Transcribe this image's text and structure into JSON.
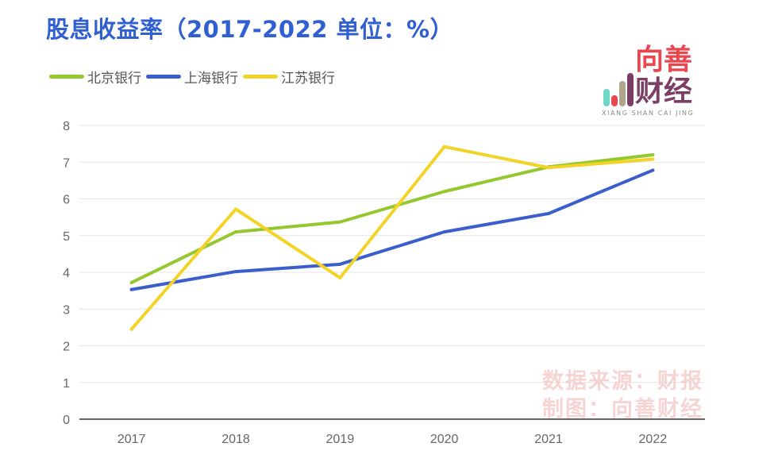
{
  "title": "股息收益率（2017-2022 单位：%）",
  "logo": {
    "top_text": "向善",
    "bottom_text": "财经",
    "sub_text": "XIANG SHAN CAI JING",
    "bar_colors": [
      "#6fd6c8",
      "#e9474f",
      "#b0a48a",
      "#7b3f66"
    ]
  },
  "watermark": {
    "line1": "数据来源：财报",
    "line2": "制图：向善财经"
  },
  "chart_data": {
    "type": "line",
    "categories": [
      "2017",
      "2018",
      "2019",
      "2020",
      "2021",
      "2022"
    ],
    "series": [
      {
        "name": "北京银行",
        "color": "#94c82e",
        "values": [
          3.72,
          5.1,
          5.37,
          6.2,
          6.87,
          7.2
        ]
      },
      {
        "name": "上海银行",
        "color": "#3a5fcd",
        "values": [
          3.53,
          4.02,
          4.22,
          5.1,
          5.6,
          6.78
        ]
      },
      {
        "name": "江苏银行",
        "color": "#f2d327",
        "values": [
          2.45,
          5.72,
          3.85,
          7.42,
          6.85,
          7.08
        ]
      }
    ],
    "yticks": [
      0,
      1,
      2,
      3,
      4,
      5,
      6,
      7,
      8
    ],
    "ylim": [
      0,
      8
    ],
    "grid": true,
    "legend": "top-left"
  }
}
